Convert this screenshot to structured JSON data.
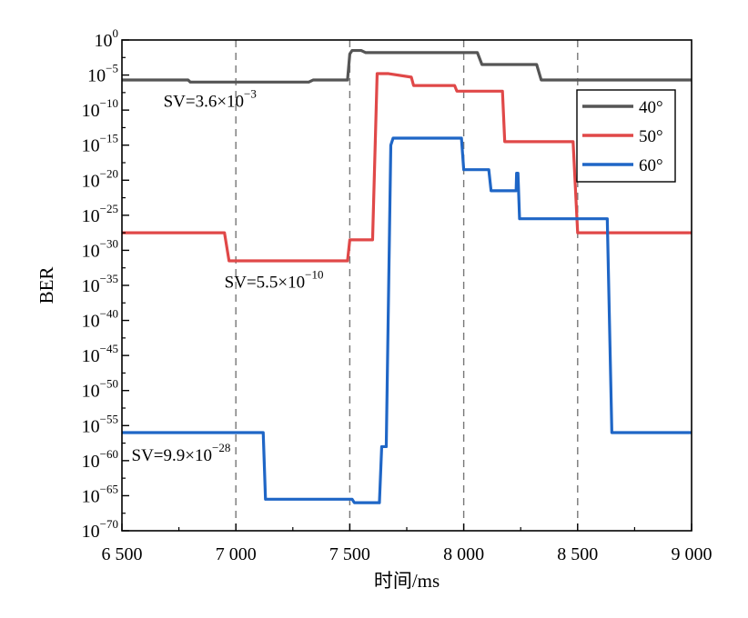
{
  "chart_data": {
    "type": "line",
    "title": "",
    "xlabel": "时间/ms",
    "ylabel": "BER",
    "xlim": [
      6500,
      9000
    ],
    "ylim_log10": [
      -70,
      0
    ],
    "y_scale": "log",
    "grid": false,
    "x_ticks": [
      {
        "value": 6500,
        "label": "6 500"
      },
      {
        "value": 7000,
        "label": "7 000"
      },
      {
        "value": 7500,
        "label": "7 500"
      },
      {
        "value": 8000,
        "label": "8 000"
      },
      {
        "value": 8500,
        "label": "8 500"
      },
      {
        "value": 9000,
        "label": "9 000"
      }
    ],
    "y_ticks": [
      {
        "exp": 0,
        "base": "10",
        "sup": "0"
      },
      {
        "exp": -5,
        "base": "10",
        "sup": "−5"
      },
      {
        "exp": -10,
        "base": "10",
        "sup": "−10"
      },
      {
        "exp": -15,
        "base": "10",
        "sup": "−15"
      },
      {
        "exp": -20,
        "base": "10",
        "sup": "−20"
      },
      {
        "exp": -25,
        "base": "10",
        "sup": "−25"
      },
      {
        "exp": -30,
        "base": "10",
        "sup": "−30"
      },
      {
        "exp": -35,
        "base": "10",
        "sup": "−35"
      },
      {
        "exp": -40,
        "base": "10",
        "sup": "−40"
      },
      {
        "exp": -45,
        "base": "10",
        "sup": "−45"
      },
      {
        "exp": -50,
        "base": "10",
        "sup": "−50"
      },
      {
        "exp": -55,
        "base": "10",
        "sup": "−55"
      },
      {
        "exp": -60,
        "base": "10",
        "sup": "−60"
      },
      {
        "exp": -65,
        "base": "10",
        "sup": "−65"
      },
      {
        "exp": -70,
        "base": "10",
        "sup": "−70"
      }
    ],
    "vlines_dashed": [
      7000,
      7500,
      8000,
      8500
    ],
    "legend": {
      "placement": "top-right"
    },
    "series": [
      {
        "name": "40°",
        "color": "#555555",
        "points": [
          [
            6500,
            -5.7
          ],
          [
            6790,
            -5.7
          ],
          [
            6800,
            -6.0
          ],
          [
            7320,
            -6.0
          ],
          [
            7340,
            -5.7
          ],
          [
            7490,
            -5.7
          ],
          [
            7500,
            -2.0
          ],
          [
            7510,
            -1.5
          ],
          [
            7550,
            -1.5
          ],
          [
            7570,
            -1.8
          ],
          [
            8060,
            -1.8
          ],
          [
            8080,
            -3.5
          ],
          [
            8320,
            -3.5
          ],
          [
            8340,
            -5.7
          ],
          [
            9000,
            -5.7
          ]
        ]
      },
      {
        "name": "50°",
        "color": "#e04848",
        "points": [
          [
            6500,
            -27.5
          ],
          [
            6950,
            -27.5
          ],
          [
            6970,
            -31.5
          ],
          [
            7490,
            -31.5
          ],
          [
            7500,
            -28.5
          ],
          [
            7600,
            -28.5
          ],
          [
            7620,
            -4.8
          ],
          [
            7670,
            -4.8
          ],
          [
            7770,
            -5.3
          ],
          [
            7780,
            -6.5
          ],
          [
            7960,
            -6.5
          ],
          [
            7970,
            -7.3
          ],
          [
            8170,
            -7.3
          ],
          [
            8180,
            -14.5
          ],
          [
            8480,
            -14.5
          ],
          [
            8500,
            -27.5
          ],
          [
            9000,
            -27.5
          ]
        ]
      },
      {
        "name": "60°",
        "color": "#1f66c6",
        "points": [
          [
            6500,
            -56.0
          ],
          [
            7120,
            -56.0
          ],
          [
            7130,
            -65.5
          ],
          [
            7510,
            -65.5
          ],
          [
            7520,
            -66.0
          ],
          [
            7630,
            -66.0
          ],
          [
            7640,
            -58.0
          ],
          [
            7660,
            -58.0
          ],
          [
            7680,
            -15.0
          ],
          [
            7690,
            -14.0
          ],
          [
            7990,
            -14.0
          ],
          [
            8000,
            -18.5
          ],
          [
            8110,
            -18.5
          ],
          [
            8120,
            -21.5
          ],
          [
            8230,
            -21.5
          ],
          [
            8232,
            -19.0
          ],
          [
            8238,
            -19.0
          ],
          [
            8245,
            -25.5
          ],
          [
            8630,
            -25.5
          ],
          [
            8650,
            -56.0
          ],
          [
            9000,
            -56.0
          ]
        ]
      }
    ],
    "annotations": [
      {
        "id": "a40",
        "base": "SV=3.6×10",
        "sup": "−3",
        "at": [
          6682,
          -9.5
        ]
      },
      {
        "id": "a50",
        "base": "SV=5.5×10",
        "sup": "−10",
        "at": [
          6950,
          -35.3
        ]
      },
      {
        "id": "a60",
        "base": "SV=9.9×10",
        "sup": "−28",
        "at": [
          6542,
          -60.0
        ]
      }
    ]
  }
}
